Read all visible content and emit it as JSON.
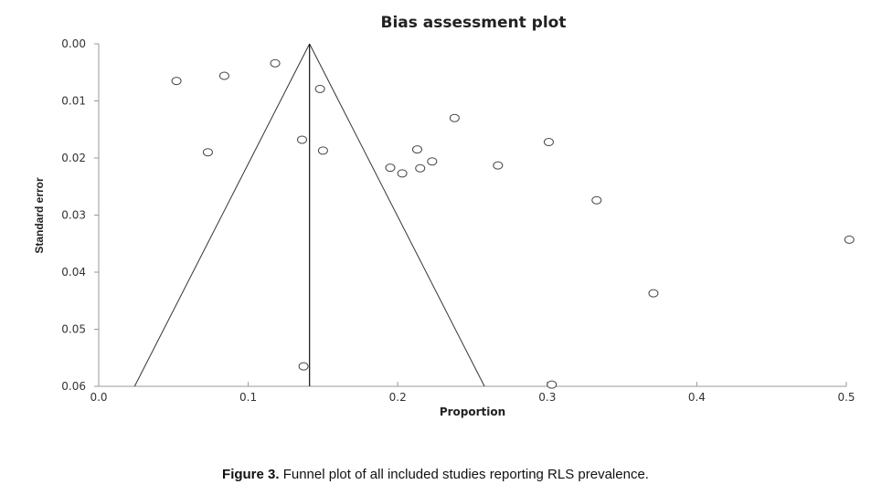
{
  "chart_data": {
    "type": "scatter",
    "title": "Bias assessment plot",
    "xlabel": "Proportion",
    "ylabel": "Standard error",
    "xlim": [
      0.0,
      0.5
    ],
    "ylim": [
      0.0,
      0.06
    ],
    "y_inverted": true,
    "grid": false,
    "x_ticks": [
      "0.0",
      "0.1",
      "0.2",
      "0.3",
      "0.4",
      "0.5"
    ],
    "y_ticks": [
      "0.00",
      "0.01",
      "0.02",
      "0.03",
      "0.04",
      "0.05",
      "0.06"
    ],
    "pooled_estimate": 0.141,
    "funnel": {
      "apex": [
        0.141,
        0.0
      ],
      "left_base": [
        0.024,
        0.06
      ],
      "right_base": [
        0.258,
        0.06
      ]
    },
    "points": [
      {
        "x": 0.052,
        "y": 0.0065
      },
      {
        "x": 0.084,
        "y": 0.0056
      },
      {
        "x": 0.118,
        "y": 0.0034
      },
      {
        "x": 0.148,
        "y": 0.0079
      },
      {
        "x": 0.073,
        "y": 0.019
      },
      {
        "x": 0.136,
        "y": 0.0168
      },
      {
        "x": 0.15,
        "y": 0.0187
      },
      {
        "x": 0.195,
        "y": 0.0217
      },
      {
        "x": 0.203,
        "y": 0.0227
      },
      {
        "x": 0.213,
        "y": 0.0185
      },
      {
        "x": 0.215,
        "y": 0.0218
      },
      {
        "x": 0.223,
        "y": 0.0206
      },
      {
        "x": 0.238,
        "y": 0.013
      },
      {
        "x": 0.267,
        "y": 0.0213
      },
      {
        "x": 0.301,
        "y": 0.0172
      },
      {
        "x": 0.333,
        "y": 0.0274
      },
      {
        "x": 0.371,
        "y": 0.0437
      },
      {
        "x": 0.502,
        "y": 0.0343
      },
      {
        "x": 0.137,
        "y": 0.0565
      },
      {
        "x": 0.303,
        "y": 0.0597
      }
    ]
  },
  "caption": {
    "label": "Figure 3.",
    "text": " Funnel plot of all included studies reporting RLS prevalence."
  }
}
